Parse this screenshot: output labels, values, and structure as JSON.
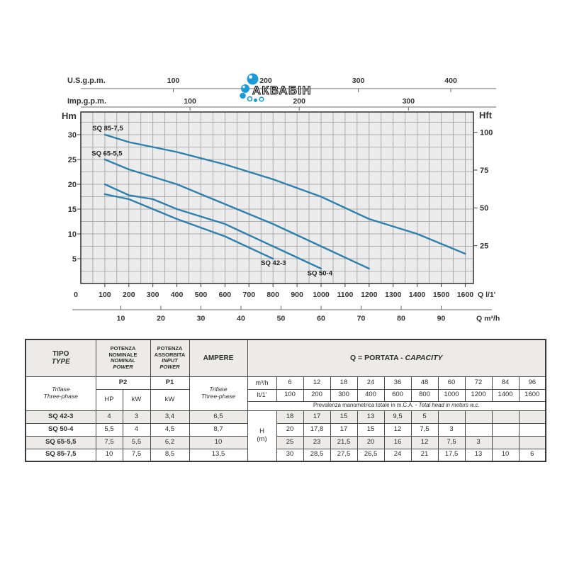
{
  "watermark": {
    "text": "АКВАБІН",
    "bubble_color": "#1d9ad6"
  },
  "chart_data": {
    "type": "line",
    "x_axis": {
      "label": "Q l/1'",
      "unit": "l/min",
      "min": 0,
      "max": 1634,
      "ticks": [
        0,
        100,
        200,
        300,
        400,
        500,
        600,
        700,
        800,
        900,
        1000,
        1100,
        1200,
        1300,
        1400,
        1500,
        1600
      ],
      "minor_step": 50
    },
    "x_axis_m3h": {
      "label": "Q m³/h",
      "ticks": [
        10,
        20,
        30,
        40,
        50,
        60,
        70,
        80,
        90
      ],
      "lmin_per_unit": 16.6667
    },
    "top_axis_us": {
      "label": "U.S.g.p.m.",
      "ticks": [
        100,
        200,
        300,
        400
      ],
      "lmin_per_unit": 3.85
    },
    "top_axis_imp": {
      "label": "Imp.g.p.m.",
      "ticks": [
        100,
        200,
        300
      ],
      "lmin_per_unit": 4.546
    },
    "y_axis": {
      "label": "Hm",
      "min": 0,
      "max": 34.5,
      "ticks": [
        5,
        10,
        15,
        20,
        25,
        30
      ],
      "minor_step": 2.5
    },
    "y_axis_right": {
      "label": "Hft",
      "ticks": [
        25,
        50,
        75,
        100
      ],
      "m_per_unit": 0.3048
    },
    "line_color": "#2e81ac",
    "grid": true,
    "legend_position": "on-curve",
    "series": [
      {
        "name": "SQ 85-7,5",
        "points": [
          [
            100,
            30
          ],
          [
            200,
            28.5
          ],
          [
            300,
            27.5
          ],
          [
            400,
            26.5
          ],
          [
            600,
            24
          ],
          [
            800,
            21
          ],
          [
            1000,
            17.5
          ],
          [
            1200,
            13
          ],
          [
            1400,
            10
          ],
          [
            1600,
            6
          ]
        ],
        "label_at": [
          112,
          31.3
        ]
      },
      {
        "name": "SQ 65-5,5",
        "points": [
          [
            100,
            25
          ],
          [
            200,
            23
          ],
          [
            300,
            21.5
          ],
          [
            400,
            20
          ],
          [
            600,
            16
          ],
          [
            800,
            12
          ],
          [
            1000,
            7.5
          ],
          [
            1200,
            3
          ]
        ],
        "label_at": [
          109,
          26.2
        ]
      },
      {
        "name": "SQ 50-4",
        "points": [
          [
            100,
            20
          ],
          [
            200,
            17.8
          ],
          [
            300,
            17
          ],
          [
            400,
            15
          ],
          [
            600,
            12
          ],
          [
            800,
            7.5
          ],
          [
            1000,
            3
          ]
        ],
        "label_at": [
          995,
          2.1
        ]
      },
      {
        "name": "SQ 42-3",
        "points": [
          [
            100,
            18
          ],
          [
            200,
            17
          ],
          [
            300,
            15
          ],
          [
            400,
            13
          ],
          [
            600,
            9.5
          ],
          [
            800,
            5
          ]
        ],
        "label_at": [
          802,
          4.15
        ]
      }
    ]
  },
  "table": {
    "headers": {
      "tipo": "TIPO",
      "type": "TYPE",
      "potenza_nominale_it": [
        "POTENZA",
        "NOMINALE"
      ],
      "potenza_nominale_en": [
        "NOMINAL",
        "POWER"
      ],
      "potenza_assorbita_it": [
        "POTENZA",
        "ASSORBITA"
      ],
      "potenza_assorbita_en": [
        "INPUT",
        "POWER"
      ],
      "ampere": "AMPERE",
      "q_portata": "Q = PORTATA -",
      "q_capacity": "CAPACITY",
      "trifase": "Trifase",
      "three_phase": "Three-phase",
      "p2": "P2",
      "p1": "P1",
      "hp": "HP",
      "kw": "kW",
      "m3h": "m³/h",
      "lt1": "lt/1'",
      "prevalenza_it": "Prevalenza manometrica totale in m.C.A. -",
      "prevalenza_en": "Total head in meters w.c.",
      "h": "H",
      "h_unit": "(m)"
    },
    "capacity_m3h": [
      "6",
      "12",
      "18",
      "24",
      "36",
      "48",
      "60",
      "72",
      "84",
      "96"
    ],
    "capacity_lt1": [
      "100",
      "200",
      "300",
      "400",
      "600",
      "800",
      "1000",
      "1200",
      "1400",
      "1600"
    ],
    "rows": [
      {
        "model": "SQ 42-3",
        "hp": "4",
        "kw": "3",
        "p1": "3,4",
        "ampere": "6,5",
        "heads": [
          "18",
          "17",
          "15",
          "13",
          "9,5",
          "5",
          "",
          "",
          "",
          ""
        ]
      },
      {
        "model": "SQ 50-4",
        "hp": "5,5",
        "kw": "4",
        "p1": "4,5",
        "ampere": "8,7",
        "heads": [
          "20",
          "17,8",
          "17",
          "15",
          "12",
          "7,5",
          "3",
          "",
          "",
          ""
        ]
      },
      {
        "model": "SQ 65-5,5",
        "hp": "7,5",
        "kw": "5,5",
        "p1": "6,2",
        "ampere": "10",
        "heads": [
          "25",
          "23",
          "21,5",
          "20",
          "16",
          "12",
          "7,5",
          "3",
          "",
          ""
        ]
      },
      {
        "model": "SQ 85-7,5",
        "hp": "10",
        "kw": "7,5",
        "p1": "8,5",
        "ampere": "13,5",
        "heads": [
          "30",
          "28,5",
          "27,5",
          "26,5",
          "24",
          "21",
          "17,5",
          "13",
          "10",
          "6"
        ]
      }
    ]
  }
}
